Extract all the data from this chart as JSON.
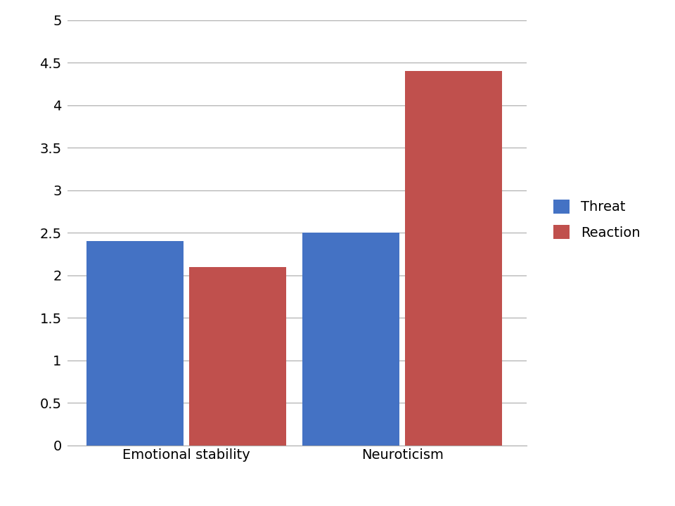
{
  "categories": [
    "Emotional stability",
    "Neuroticism"
  ],
  "threat_values": [
    2.4,
    2.5
  ],
  "reaction_values": [
    2.1,
    4.4
  ],
  "threat_color": "#4472C4",
  "reaction_color": "#C0504D",
  "ylim": [
    0,
    5
  ],
  "yticks": [
    0,
    0.5,
    1,
    1.5,
    2,
    2.5,
    3,
    3.5,
    4,
    4.5,
    5
  ],
  "legend_labels": [
    "Threat",
    "Reaction"
  ],
  "bar_width": 0.18,
  "group_positions": [
    0.22,
    0.62
  ],
  "background_color": "#ffffff",
  "grid_color": "#aaaaaa",
  "tick_fontsize": 14,
  "legend_fontsize": 14,
  "xlabel_fontsize": 14,
  "spine_color": "#aaaaaa"
}
